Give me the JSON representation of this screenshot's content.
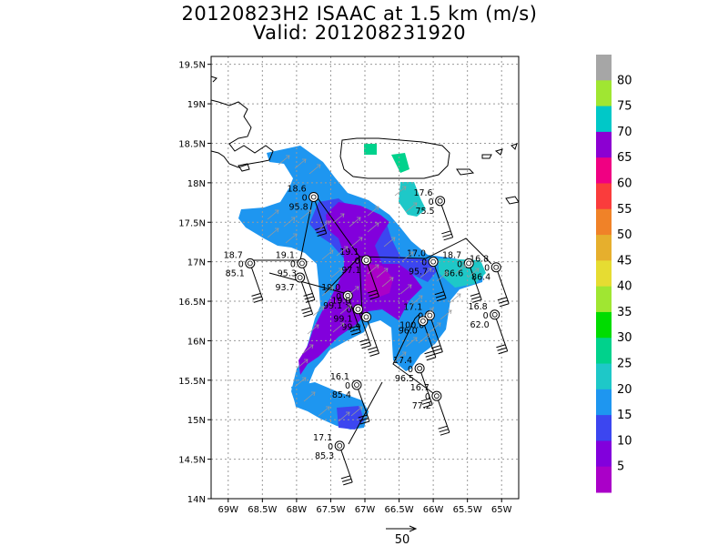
{
  "title": {
    "line1": "20120823H2 ISAAC at 1.5 km (m/s)",
    "line2": "Valid: 201208231920"
  },
  "map": {
    "lon_range": [
      -69.25,
      -64.75
    ],
    "lat_range": [
      14.0,
      19.6
    ],
    "x_ticks": [
      {
        "lon": -69.0,
        "label": "69W"
      },
      {
        "lon": -68.5,
        "label": "68.5W"
      },
      {
        "lon": -68.0,
        "label": "68W"
      },
      {
        "lon": -67.5,
        "label": "67.5W"
      },
      {
        "lon": -67.0,
        "label": "67W"
      },
      {
        "lon": -66.5,
        "label": "66.5W"
      },
      {
        "lon": -66.0,
        "label": "66W"
      },
      {
        "lon": -65.5,
        "label": "65.5W"
      },
      {
        "lon": -65.0,
        "label": "65W"
      }
    ],
    "y_ticks": [
      {
        "lat": 14.0,
        "label": "14N"
      },
      {
        "lat": 14.5,
        "label": "14.5N"
      },
      {
        "lat": 15.0,
        "label": "15N"
      },
      {
        "lat": 15.5,
        "label": "15.5N"
      },
      {
        "lat": 16.0,
        "label": "16N"
      },
      {
        "lat": 16.5,
        "label": "16.5N"
      },
      {
        "lat": 17.0,
        "label": "17N"
      },
      {
        "lat": 17.5,
        "label": "17.5N"
      },
      {
        "lat": 18.0,
        "label": "18N"
      },
      {
        "lat": 18.5,
        "label": "18.5N"
      },
      {
        "lat": 19.0,
        "label": "19N"
      },
      {
        "lat": 19.5,
        "label": "19.5N"
      }
    ],
    "grid": true
  },
  "stations": [
    {
      "lon": -67.75,
      "lat": 17.82,
      "t": "18.6",
      "c": "0",
      "p": "95.8"
    },
    {
      "lon": -65.9,
      "lat": 17.77,
      "t": "17.6",
      "c": "0",
      "p": "75.5"
    },
    {
      "lon": -65.48,
      "lat": 16.98,
      "t": "18.7",
      "c": "0",
      "p": "86.6"
    },
    {
      "lon": -65.08,
      "lat": 16.93,
      "t": "16.8",
      "c": "0",
      "p": "86.4"
    },
    {
      "lon": -68.68,
      "lat": 16.98,
      "t": "18.7",
      "c": "0",
      "p": "85.1"
    },
    {
      "lon": -67.92,
      "lat": 16.98,
      "t": "19.1",
      "c": "0",
      "p": "95.3"
    },
    {
      "lon": -67.95,
      "lat": 16.8,
      "t": "",
      "c": "",
      "p": "93.7"
    },
    {
      "lon": -67.25,
      "lat": 16.57,
      "t": "19.0",
      "c": "0",
      "p": "99.1"
    },
    {
      "lon": -66.98,
      "lat": 17.02,
      "t": "19.1",
      "c": "0",
      "p": "97.1"
    },
    {
      "lon": -66.0,
      "lat": 17.0,
      "t": "17.0",
      "c": "0",
      "p": "95.7"
    },
    {
      "lon": -67.1,
      "lat": 16.4,
      "t": "19.0",
      "c": "0",
      "p": "99.1"
    },
    {
      "lon": -66.98,
      "lat": 16.3,
      "t": "",
      "c": "",
      "p": "99.9"
    },
    {
      "lon": -66.05,
      "lat": 16.32,
      "t": "17.1",
      "c": "0",
      "p": "100.0"
    },
    {
      "lon": -66.15,
      "lat": 16.25,
      "t": "",
      "c": "",
      "p": "96.0"
    },
    {
      "lon": -65.1,
      "lat": 16.33,
      "t": "16.8",
      "c": "0",
      "p": "62.0"
    },
    {
      "lon": -66.2,
      "lat": 15.65,
      "t": "17.4",
      "c": "0",
      "p": "96.5"
    },
    {
      "lon": -67.12,
      "lat": 15.44,
      "t": "16.1",
      "c": "0",
      "p": "85.4"
    },
    {
      "lon": -65.95,
      "lat": 15.3,
      "t": "16.7",
      "c": "0",
      "p": "77.2"
    },
    {
      "lon": -67.37,
      "lat": 14.67,
      "t": "17.1",
      "c": "0",
      "p": "85.3"
    }
  ],
  "colorbar": {
    "labels": [
      "80",
      "75",
      "70",
      "65",
      "60",
      "55",
      "50",
      "45",
      "40",
      "35",
      "30",
      "25",
      "20",
      "15",
      "10",
      "5"
    ],
    "colors": [
      "#a6a6a6",
      "#a0e632",
      "#00c8c8",
      "#8c00d2",
      "#f00082",
      "#fa3c3c",
      "#f08228",
      "#e6af2d",
      "#e6dc32",
      "#a0e632",
      "#00dc00",
      "#00d28c",
      "#1ec8c8",
      "#1e96f0",
      "#3c46f0",
      "#8200dc",
      "#aa00c8"
    ]
  },
  "scale_arrow": {
    "label": "50"
  }
}
